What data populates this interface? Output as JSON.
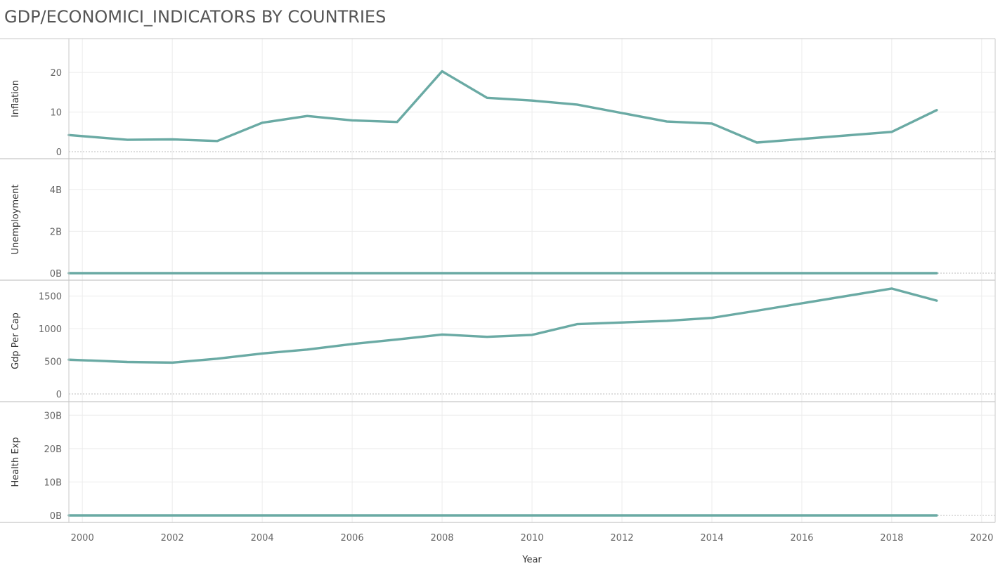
{
  "title": "GDP/ECONOMICI_INDICATORS BY COUNTRIES",
  "colors": {
    "line": "#6aaaa4",
    "grid": "#ececec",
    "border": "#c8c8c8",
    "zero": "#bdbdbd"
  },
  "chart_data": {
    "type": "line",
    "xlabel": "Year",
    "xlim": [
      1999.7,
      2020.3
    ],
    "xticks": [
      "2000",
      "2002",
      "2004",
      "2006",
      "2008",
      "2010",
      "2012",
      "2014",
      "2016",
      "2018",
      "2020"
    ],
    "x": [
      1999.7,
      2001,
      2002,
      2003,
      2004,
      2005,
      2006,
      2007,
      2008,
      2009,
      2010,
      2011,
      2013,
      2014,
      2015,
      2018,
      2019
    ],
    "panels": [
      {
        "ylabel": "Inflation",
        "ylim": [
          0,
          28
        ],
        "yticks": [
          {
            "v": 0,
            "t": "0"
          },
          {
            "v": 10,
            "t": "10"
          },
          {
            "v": 20,
            "t": "20"
          }
        ],
        "values": [
          4.2,
          3.0,
          3.1,
          2.7,
          7.3,
          9.0,
          7.9,
          7.5,
          20.3,
          13.6,
          12.9,
          11.9,
          7.6,
          7.1,
          2.3,
          5.0,
          10.5
        ]
      },
      {
        "ylabel": "Unemployment",
        "ylim": [
          0,
          5300000000
        ],
        "yticks": [
          {
            "v": 0,
            "t": "0B"
          },
          {
            "v": 2000000000,
            "t": "2B"
          },
          {
            "v": 4000000000,
            "t": "4B"
          }
        ],
        "values": [
          0,
          0,
          0,
          0,
          0,
          0,
          0,
          0,
          0,
          0,
          0,
          0,
          0,
          0,
          0,
          0,
          0
        ]
      },
      {
        "ylabel": "Gdp Per Cap",
        "ylim": [
          0,
          1700
        ],
        "yticks": [
          {
            "v": 0,
            "t": "0"
          },
          {
            "v": 500,
            "t": "500"
          },
          {
            "v": 1000,
            "t": "1000"
          },
          {
            "v": 1500,
            "t": "1500"
          }
        ],
        "values": [
          525,
          490,
          480,
          540,
          620,
          680,
          765,
          835,
          910,
          875,
          905,
          1070,
          1120,
          1165,
          1275,
          1615,
          1430
        ]
      },
      {
        "ylabel": "Health Exp",
        "ylim": [
          0,
          33000000000
        ],
        "yticks": [
          {
            "v": 0,
            "t": "0B"
          },
          {
            "v": 10000000000,
            "t": "10B"
          },
          {
            "v": 20000000000,
            "t": "20B"
          },
          {
            "v": 30000000000,
            "t": "30B"
          }
        ],
        "values": [
          0,
          0,
          0,
          0,
          0,
          0,
          0,
          0,
          0,
          0,
          0,
          0,
          0,
          0,
          0,
          0,
          0
        ]
      }
    ]
  }
}
